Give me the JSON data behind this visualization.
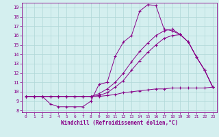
{
  "xlabel": "Windchill (Refroidissement éolien,°C)",
  "xlim": [
    -0.5,
    23.5
  ],
  "ylim": [
    7.8,
    19.5
  ],
  "xticks": [
    0,
    1,
    2,
    3,
    4,
    5,
    6,
    7,
    8,
    9,
    10,
    11,
    12,
    13,
    14,
    15,
    16,
    17,
    18,
    19,
    20,
    21,
    22,
    23
  ],
  "yticks": [
    8,
    9,
    10,
    11,
    12,
    13,
    14,
    15,
    16,
    17,
    18,
    19
  ],
  "line_color": "#880088",
  "bg_color": "#d4efef",
  "grid_color": "#b0d8d8",
  "line1_x": [
    0,
    1,
    2,
    3,
    4,
    5,
    6,
    7,
    8,
    9,
    10,
    11,
    12,
    13,
    14,
    15,
    16,
    17,
    18,
    19,
    20,
    21,
    22,
    23
  ],
  "line1_y": [
    9.5,
    9.5,
    9.5,
    8.7,
    8.4,
    8.4,
    8.4,
    8.4,
    9.0,
    10.8,
    11.0,
    13.8,
    15.3,
    16.0,
    18.6,
    19.3,
    19.2,
    16.7,
    16.5,
    16.1,
    15.3,
    13.7,
    12.3,
    10.5
  ],
  "line2_x": [
    0,
    1,
    2,
    3,
    4,
    5,
    6,
    7,
    8,
    9,
    10,
    11,
    12,
    13,
    14,
    15,
    16,
    17,
    18,
    19,
    20,
    21,
    22,
    23
  ],
  "line2_y": [
    9.5,
    9.5,
    9.5,
    9.5,
    9.5,
    9.5,
    9.5,
    9.5,
    9.5,
    9.8,
    10.3,
    11.0,
    12.0,
    13.2,
    14.3,
    15.2,
    16.0,
    16.5,
    16.7,
    16.1,
    15.3,
    13.7,
    12.3,
    10.5
  ],
  "line3_x": [
    0,
    1,
    2,
    3,
    4,
    5,
    6,
    7,
    8,
    9,
    10,
    11,
    12,
    13,
    14,
    15,
    16,
    17,
    18,
    19,
    20,
    21,
    22,
    23
  ],
  "line3_y": [
    9.5,
    9.5,
    9.5,
    9.5,
    9.5,
    9.5,
    9.5,
    9.5,
    9.5,
    9.6,
    9.9,
    10.5,
    11.2,
    12.3,
    13.3,
    14.2,
    15.0,
    15.7,
    16.0,
    16.1,
    15.3,
    13.7,
    12.3,
    10.5
  ],
  "line4_x": [
    0,
    1,
    2,
    3,
    4,
    5,
    6,
    7,
    8,
    9,
    10,
    11,
    12,
    13,
    14,
    15,
    16,
    17,
    18,
    19,
    20,
    21,
    22,
    23
  ],
  "line4_y": [
    9.5,
    9.5,
    9.5,
    9.5,
    9.5,
    9.5,
    9.5,
    9.5,
    9.5,
    9.5,
    9.6,
    9.7,
    9.9,
    10.0,
    10.1,
    10.2,
    10.3,
    10.3,
    10.4,
    10.4,
    10.4,
    10.4,
    10.4,
    10.5
  ]
}
